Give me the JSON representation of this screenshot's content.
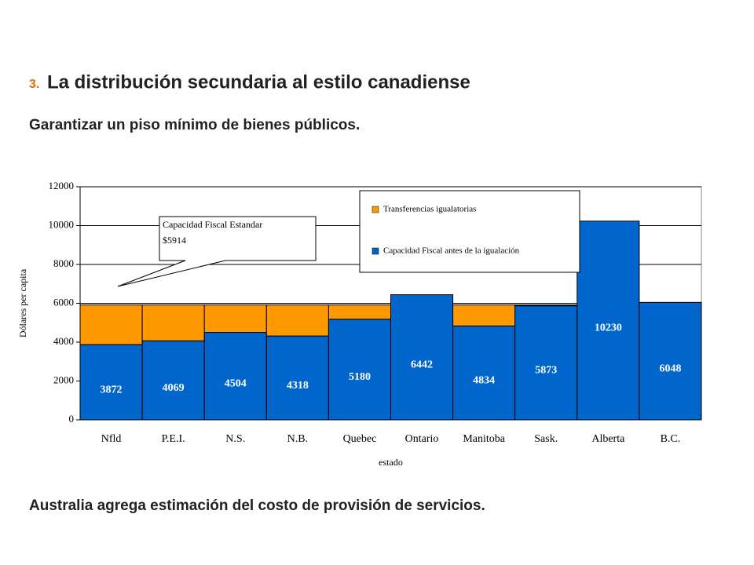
{
  "header": {
    "number": "3.",
    "title": "La distribución secundaria al estilo canadiense"
  },
  "subtitle": "Garantizar un piso mínimo de bienes públicos.",
  "footer": "Australia agrega estimación del costo de provisión de servicios.",
  "chart_data": {
    "type": "bar",
    "stacked": true,
    "categories": [
      "Nfld",
      "P.E.I.",
      "N.S.",
      "N.B.",
      "Quebec",
      "Ontario",
      "Manitoba",
      "Sask.",
      "Alberta",
      "B.C."
    ],
    "series": [
      {
        "name": "Capacidad Fiscal antes de la igualación",
        "color": "#0066cc",
        "values": [
          3872,
          4069,
          4504,
          4318,
          5180,
          6442,
          4834,
          5873,
          10230,
          6048
        ]
      },
      {
        "name": "Transferencias igualatorias",
        "color": "#ff9900",
        "values": [
          2042,
          1845,
          1410,
          1596,
          734,
          0,
          1080,
          41,
          0,
          0
        ]
      }
    ],
    "ylim": [
      0,
      12000
    ],
    "yticks": [
      0,
      2000,
      4000,
      6000,
      8000,
      10000,
      12000
    ],
    "grid": true,
    "ylabel": "Dólares per capita",
    "xlabel": "estado",
    "annotation": {
      "lines": [
        "Capacidad Fiscal Estandar",
        "$5914"
      ]
    }
  }
}
